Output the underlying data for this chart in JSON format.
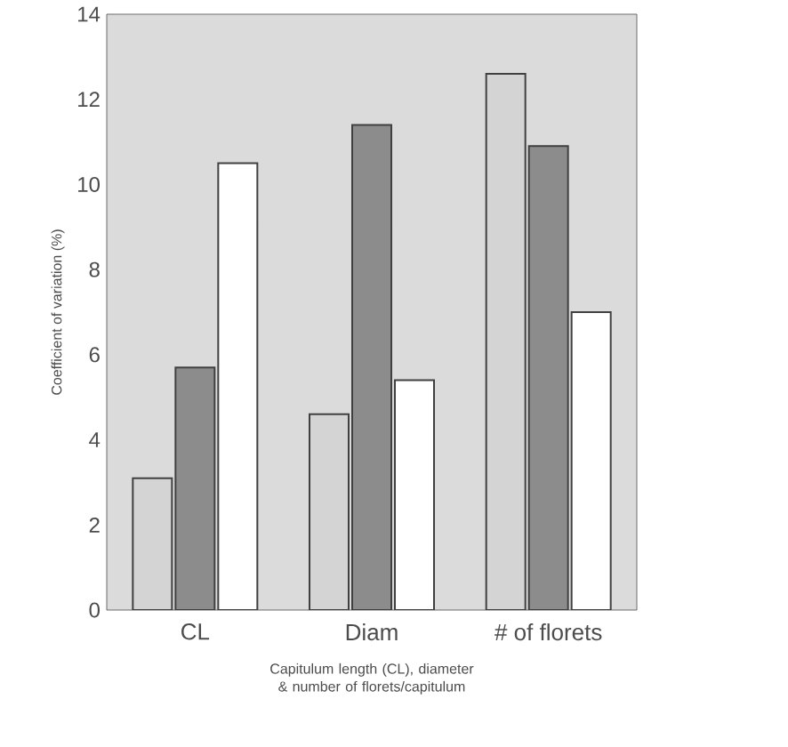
{
  "chart_data": {
    "type": "bar",
    "xlabel": "Capitulum length (CL), diameter & number of florets/capitulum",
    "ylabel": "Coefficient of variation (%)",
    "categories": [
      "CL",
      "Diam",
      "# of florets"
    ],
    "series": [
      {
        "color": "#d4d4d4",
        "values": [
          3.1,
          4.6,
          12.6
        ]
      },
      {
        "color": "#8c8c8c",
        "values": [
          5.7,
          11.4,
          10.9
        ]
      },
      {
        "color": "#ffffff",
        "values": [
          10.5,
          5.4,
          7.0
        ]
      }
    ],
    "ylim": [
      0,
      14
    ],
    "yticks": [
      0,
      2,
      4,
      6,
      8,
      10,
      12,
      14
    ],
    "grid": false
  }
}
